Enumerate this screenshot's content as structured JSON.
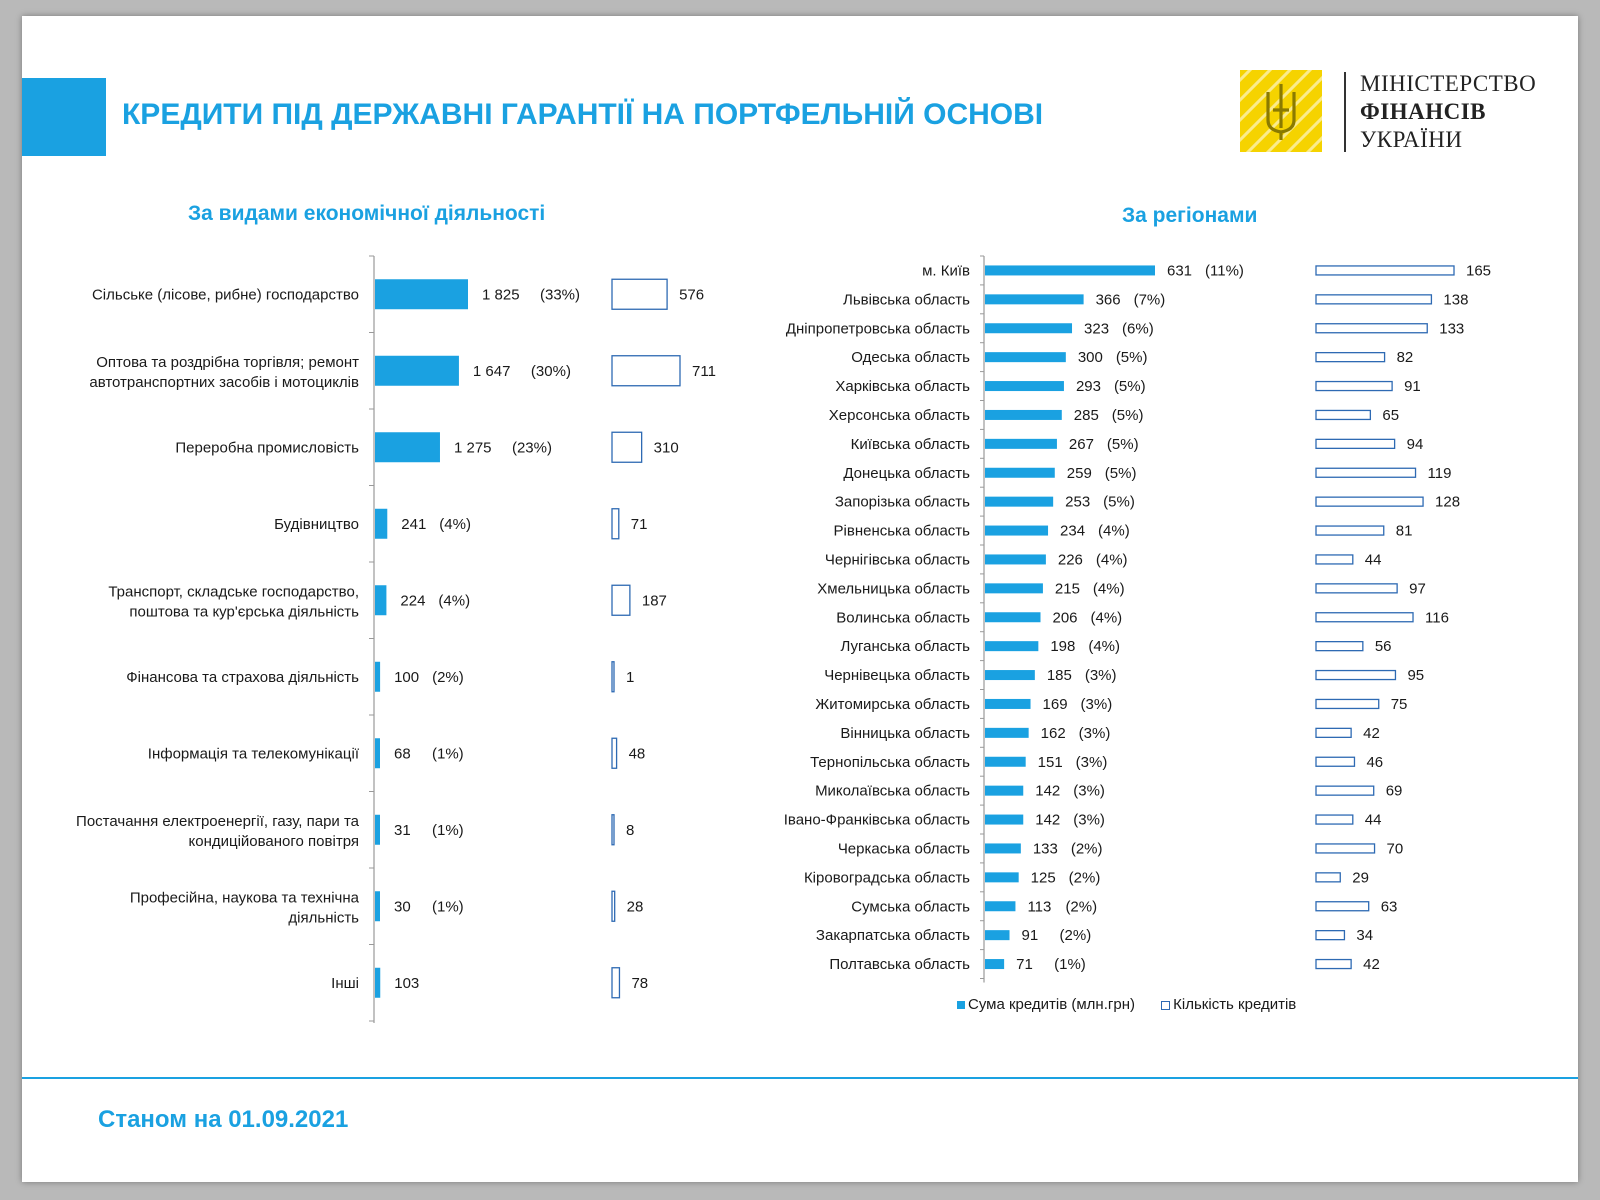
{
  "colors": {
    "accent": "#1AA1E1",
    "title": "#1AA1E1",
    "bar_outline": "#2E6AB3",
    "logo_yellow": "#F5D300",
    "axis": "#999999",
    "text": "#1a1a1a"
  },
  "header": {
    "title": "КРЕДИТИ ПІД ДЕРЖАВНІ ГАРАНТІЇ НА ПОРТФЕЛЬНІЙ ОСНОВІ",
    "logo_icon": "trident-emblem-icon",
    "logo_line1": "МІНІСТЕРСТВО",
    "logo_line2": "ФІНАНСІВ",
    "logo_line3": "УКРАЇНИ"
  },
  "footer": {
    "date": "Станом на 01.09.2021"
  },
  "chart_data": [
    {
      "type": "bar",
      "orientation": "horizontal",
      "title": "За видами економічної діяльності",
      "categories": [
        "Сільське (лісове, рибне) господарство",
        "Оптова та роздрібна торгівля; ремонт автотранспортних засобів і мотоциклів",
        "Переробна промисловість",
        "Будівництво",
        "Транспорт, складське господарство, поштова та кур'єрська діяльність",
        "Фінансова та страхова діяльність",
        "Інформація та телекомунікації",
        "Постачання електроенергії, газу, пари та кондиційованого повітря",
        "Професійна, наукова та технічна діяльність",
        "Інші"
      ],
      "series": [
        {
          "name": "Сума кредитів (млн.грн)",
          "values": [
            1825,
            1647,
            1275,
            241,
            224,
            100,
            68,
            31,
            30,
            103
          ],
          "labels": [
            "1 825",
            "1 647",
            "1 275",
            "241",
            "224",
            "100",
            "68",
            "31",
            "30",
            "103"
          ],
          "shares": [
            "(33%)",
            "(30%)",
            "(23%)",
            "(4%)",
            "(4%)",
            "(2%)",
            "(1%)",
            "(1%)",
            "(1%)",
            ""
          ]
        },
        {
          "name": "Кількість кредитів",
          "values": [
            576,
            711,
            310,
            71,
            187,
            1,
            48,
            8,
            28,
            78
          ]
        }
      ]
    },
    {
      "type": "bar",
      "orientation": "horizontal",
      "title": "За регіонами",
      "categories": [
        "м. Київ",
        "Львівська область",
        "Дніпропетровська область",
        "Одеська область",
        "Харківська область",
        "Херсонська область",
        "Київська область",
        "Донецька область",
        "Запорізька область",
        "Рівненська область",
        "Чернігівська область",
        "Хмельницька область",
        "Волинська область",
        "Луганська область",
        "Чернівецька область",
        "Житомирська область",
        "Вінницька область",
        "Тернопільська область",
        "Миколаївська область",
        "Івано-Франківська область",
        "Черкаська область",
        "Кіровоградська область",
        "Сумська область",
        "Закарпатська область",
        "Полтавська область"
      ],
      "series": [
        {
          "name": "Сума кредитів (млн.грн)",
          "values": [
            631,
            366,
            323,
            300,
            293,
            285,
            267,
            259,
            253,
            234,
            226,
            215,
            206,
            198,
            185,
            169,
            162,
            151,
            142,
            142,
            133,
            125,
            113,
            91,
            71
          ],
          "shares": [
            "(11%)",
            "(7%)",
            "(6%)",
            "(5%)",
            "(5%)",
            "(5%)",
            "(5%)",
            "(5%)",
            "(5%)",
            "(4%)",
            "(4%)",
            "(4%)",
            "(4%)",
            "(4%)",
            "(3%)",
            "(3%)",
            "(3%)",
            "(3%)",
            "(3%)",
            "(3%)",
            "(2%)",
            "(2%)",
            "(2%)",
            "(2%)",
            "(1%)"
          ]
        },
        {
          "name": "Кількість кредитів",
          "values": [
            165,
            138,
            133,
            82,
            91,
            65,
            94,
            119,
            128,
            81,
            44,
            97,
            116,
            56,
            95,
            75,
            42,
            46,
            69,
            44,
            70,
            29,
            63,
            34,
            42
          ]
        }
      ],
      "legend": [
        "Сума кредитів (млн.грн)",
        "Кількість кредитів"
      ]
    }
  ]
}
